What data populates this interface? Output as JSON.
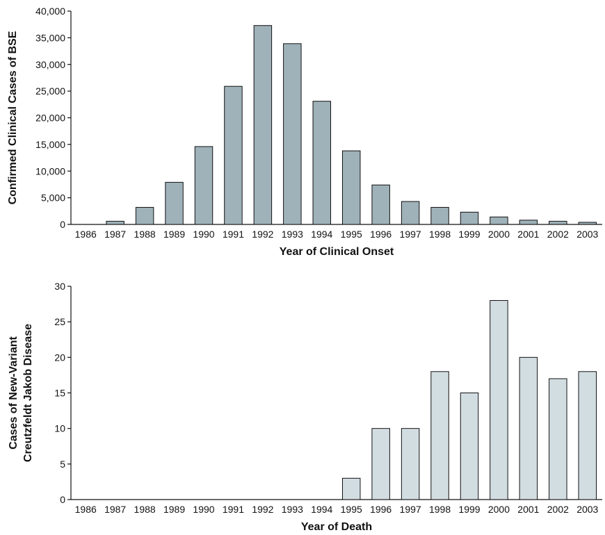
{
  "chart_data": [
    {
      "type": "bar",
      "categories": [
        "1986",
        "1987",
        "1988",
        "1989",
        "1990",
        "1991",
        "1992",
        "1993",
        "1994",
        "1995",
        "1996",
        "1997",
        "1998",
        "1999",
        "2000",
        "2001",
        "2002",
        "2003"
      ],
      "values": [
        0,
        600,
        3200,
        7900,
        14600,
        25900,
        37300,
        33900,
        23100,
        13800,
        7400,
        4300,
        3200,
        2300,
        1400,
        800,
        600,
        400
      ],
      "xlabel": "Year of Clinical Onset",
      "ylabel": "Confirmed Clinical Cases of BSE",
      "ylim": [
        0,
        40000
      ],
      "yticks": [
        0,
        5000,
        10000,
        15000,
        20000,
        25000,
        30000,
        35000,
        40000
      ],
      "ytick_labels": [
        "0",
        "5,000",
        "10,000",
        "15,000",
        "20,000",
        "25,000",
        "30,000",
        "35,000",
        "40,000"
      ],
      "bar_color": "#9fb1b9",
      "grid": false
    },
    {
      "type": "bar",
      "categories": [
        "1986",
        "1987",
        "1988",
        "1989",
        "1990",
        "1991",
        "1992",
        "1993",
        "1994",
        "1995",
        "1996",
        "1997",
        "1998",
        "1999",
        "2000",
        "2001",
        "2002",
        "2003"
      ],
      "values": [
        0,
        0,
        0,
        0,
        0,
        0,
        0,
        0,
        0,
        3,
        10,
        10,
        18,
        15,
        28,
        20,
        17,
        18
      ],
      "xlabel": "Year of Death",
      "ylabel_lines": [
        "Cases of New-Variant",
        "Creutzfeldt Jakob Disease"
      ],
      "ylim": [
        0,
        30
      ],
      "yticks": [
        0,
        5,
        10,
        15,
        20,
        25,
        30
      ],
      "ytick_labels": [
        "0",
        "5",
        "10",
        "15",
        "20",
        "25",
        "30"
      ],
      "bar_color": "#d2dde2",
      "grid": false
    }
  ]
}
